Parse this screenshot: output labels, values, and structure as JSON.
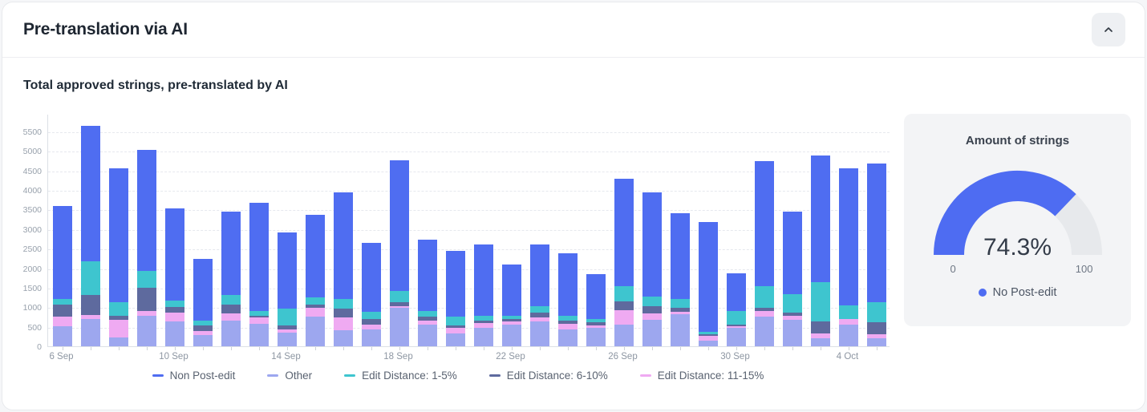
{
  "header": {
    "title": "Pre-translation via AI",
    "collapse_icon": "chevron-up"
  },
  "panel": {
    "subtitle": "Total approved strings, pre-translated by AI"
  },
  "colors": {
    "non_post_edit": "#4f6df1",
    "other": "#9da7ef",
    "edit_distance_1_5": "#3ec5cf",
    "edit_distance_6_10": "#5e6a9e",
    "edit_distance_11_15": "#efaaf2",
    "gauge_track": "#e7e9ec",
    "gauge_card_bg": "#f3f4f6"
  },
  "chart_data": [
    {
      "type": "bar",
      "stacked": true,
      "title": "Total approved strings, pre-translated by AI",
      "xlabel": "",
      "ylabel": "",
      "ylim": [
        0,
        5500
      ],
      "y_tick_step": 500,
      "y_scale_max": 5950,
      "x_label_every": 4,
      "grid": "dashed-horizontal",
      "legend_position": "bottom",
      "categories": [
        "6 Sep",
        "7 Sep",
        "8 Sep",
        "9 Sep",
        "10 Sep",
        "11 Sep",
        "12 Sep",
        "13 Sep",
        "14 Sep",
        "15 Sep",
        "16 Sep",
        "17 Sep",
        "18 Sep",
        "19 Sep",
        "20 Sep",
        "21 Sep",
        "22 Sep",
        "23 Sep",
        "24 Sep",
        "25 Sep",
        "26 Sep",
        "27 Sep",
        "28 Sep",
        "29 Sep",
        "30 Sep",
        "1 Oct",
        "2 Oct",
        "3 Oct",
        "4 Oct",
        "5 Oct"
      ],
      "series": [
        {
          "name": "Other",
          "color": "#9da7ef",
          "values": [
            510,
            700,
            230,
            780,
            630,
            280,
            650,
            570,
            360,
            750,
            420,
            440,
            980,
            560,
            320,
            480,
            550,
            640,
            440,
            480,
            560,
            680,
            820,
            150,
            480,
            760,
            670,
            200,
            560,
            200
          ]
        },
        {
          "name": "Edit Distance: 11-15%",
          "color": "#efaaf2",
          "values": [
            250,
            110,
            440,
            120,
            230,
            120,
            190,
            160,
            80,
            230,
            310,
            110,
            50,
            100,
            150,
            110,
            90,
            100,
            140,
            60,
            360,
            160,
            60,
            110,
            30,
            140,
            110,
            140,
            140,
            100
          ]
        },
        {
          "name": "Edit Distance: 6-10%",
          "color": "#5e6a9e",
          "values": [
            300,
            500,
            120,
            610,
            140,
            140,
            230,
            60,
            100,
            80,
            230,
            140,
            100,
            100,
            70,
            60,
            60,
            120,
            80,
            80,
            230,
            180,
            100,
            50,
            40,
            80,
            80,
            300,
            0,
            320
          ]
        },
        {
          "name": "Edit Distance: 1-5%",
          "color": "#3ec5cf",
          "values": [
            150,
            870,
            340,
            430,
            180,
            110,
            250,
            120,
            430,
            190,
            250,
            200,
            280,
            140,
            230,
            140,
            80,
            160,
            120,
            80,
            390,
            260,
            230,
            70,
            350,
            570,
            480,
            1000,
            350,
            510
          ]
        },
        {
          "name": "Non Post-edit",
          "color": "#4f6df1",
          "values": [
            2390,
            3470,
            3430,
            3090,
            2340,
            1580,
            2130,
            2770,
            1950,
            2120,
            2740,
            1760,
            3350,
            1820,
            1670,
            1810,
            1320,
            1580,
            1600,
            1150,
            2760,
            2650,
            2190,
            2800,
            970,
            3190,
            2110,
            3250,
            3500,
            3540
          ]
        }
      ],
      "legend_order": [
        "Non Post-edit",
        "Other",
        "Edit Distance: 1-5%",
        "Edit Distance: 6-10%",
        "Edit Distance: 11-15%"
      ]
    },
    {
      "type": "gauge",
      "title": "Amount of strings",
      "value": 74.3,
      "value_label": "74.3%",
      "min": 0,
      "max": 100,
      "min_label": "0",
      "max_label": "100",
      "legend_label": "No Post-edit",
      "color": "#4e6cf2",
      "track_color": "#e7e9ec"
    }
  ]
}
